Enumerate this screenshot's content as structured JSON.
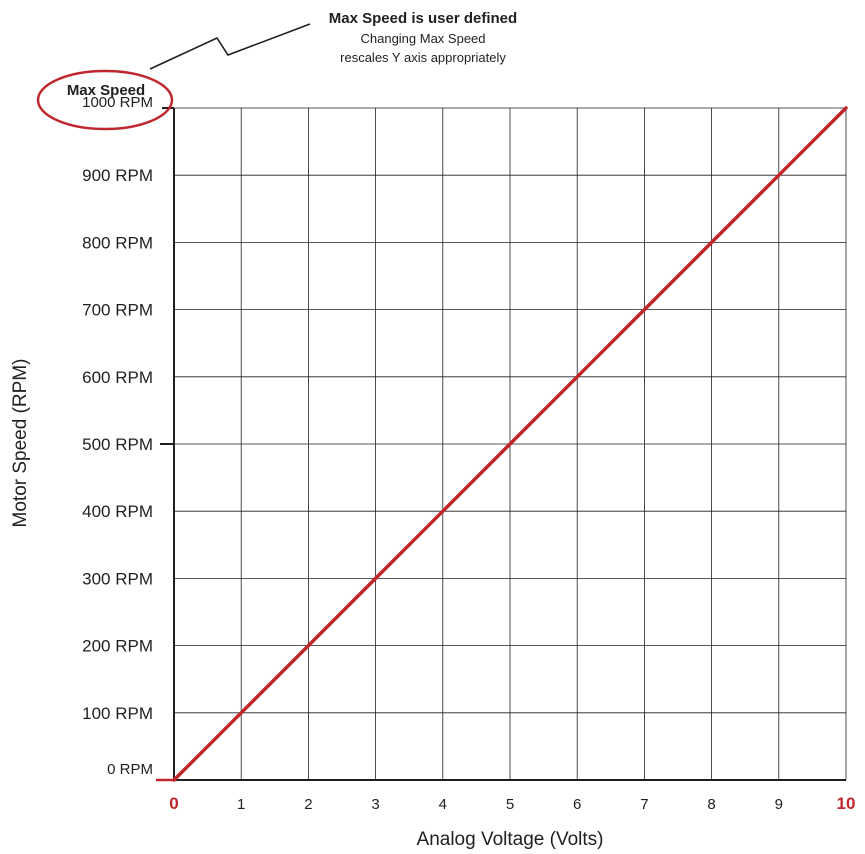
{
  "chart_data": {
    "type": "line",
    "xlabel": "Analog Voltage (Volts)",
    "ylabel": "Motor Speed (RPM)",
    "xlim": [
      0,
      10
    ],
    "ylim": [
      0,
      1000
    ],
    "grid": true,
    "x_ticks": [
      "0",
      "1",
      "2",
      "3",
      "4",
      "5",
      "6",
      "7",
      "8",
      "9",
      "10"
    ],
    "y_ticks": [
      "0 RPM",
      "100 RPM",
      "200 RPM",
      "300 RPM",
      "400 RPM",
      "500 RPM",
      "600 RPM",
      "700 RPM",
      "800 RPM",
      "900 RPM",
      "1000 RPM"
    ],
    "series": [
      {
        "x": [
          0,
          1,
          2,
          3,
          4,
          5,
          6,
          7,
          8,
          9,
          10
        ],
        "values": [
          0,
          100,
          200,
          300,
          400,
          500,
          600,
          700,
          800,
          900,
          1000
        ]
      }
    ],
    "annotations": {
      "max_label": "Max Speed",
      "callout_title": "Max Speed is user defined",
      "callout_line1": "Changing Max Speed",
      "callout_line2": "rescales Y axis appropriately"
    }
  },
  "colors": {
    "accent": "#c0272d",
    "grid": "#231f20",
    "text": "#231f20"
  }
}
